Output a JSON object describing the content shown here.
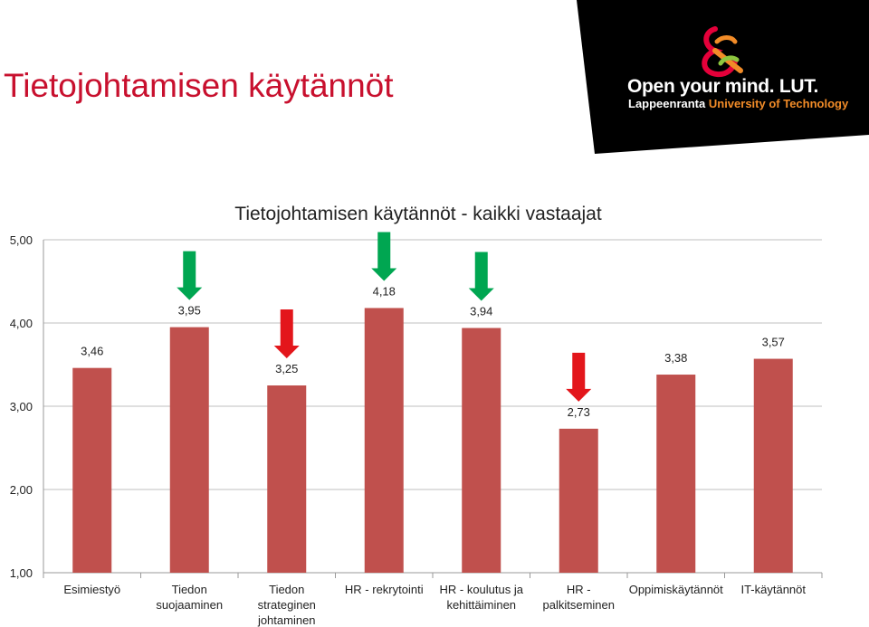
{
  "slide": {
    "title": "Tietojohtamisen käytännöt",
    "logo": {
      "tagline": "Open your mind. LUT.",
      "name_part1": "Lappeenranta ",
      "name_part2": "University of Technology",
      "banner_color": "#000000",
      "accent_colors": [
        "#e4003a",
        "#f28c28",
        "#8dc63f"
      ]
    },
    "title_color": "#c8102e"
  },
  "chart_data": {
    "type": "bar",
    "title": "Tietojohtamisen käytännöt - kaikki vastaajat",
    "categories": [
      [
        "Esimiestyö"
      ],
      [
        "Tiedon",
        "suojaaminen"
      ],
      [
        "Tiedon",
        "strateginen",
        "johtaminen"
      ],
      [
        "HR - rekrytointi"
      ],
      [
        "HR - koulutus ja",
        "kehittäiminen"
      ],
      [
        "HR -",
        "palkitseminen"
      ],
      [
        "Oppimiskäytännöt"
      ],
      [
        "IT-käytännöt"
      ]
    ],
    "values": [
      3.46,
      3.95,
      3.25,
      4.18,
      3.94,
      2.73,
      3.38,
      3.57
    ],
    "value_labels": [
      "3,46",
      "3,95",
      "3,25",
      "4,18",
      "3,94",
      "2,73",
      "3,38",
      "3,57"
    ],
    "ylim": [
      1,
      5
    ],
    "yticks": [
      1,
      2,
      3,
      4,
      5
    ],
    "ytick_labels": [
      "1,00",
      "2,00",
      "3,00",
      "4,00",
      "5,00"
    ],
    "bar_color": "#c0504d",
    "grid": true,
    "legend": false,
    "annotations": [
      {
        "category_index": 1,
        "type": "arrow-down",
        "color": "#00a651"
      },
      {
        "category_index": 2,
        "type": "arrow-down",
        "color": "#e3161b"
      },
      {
        "category_index": 3,
        "type": "arrow-down",
        "color": "#00a651"
      },
      {
        "category_index": 4,
        "type": "arrow-down",
        "color": "#00a651"
      },
      {
        "category_index": 5,
        "type": "arrow-down",
        "color": "#e3161b"
      }
    ]
  }
}
